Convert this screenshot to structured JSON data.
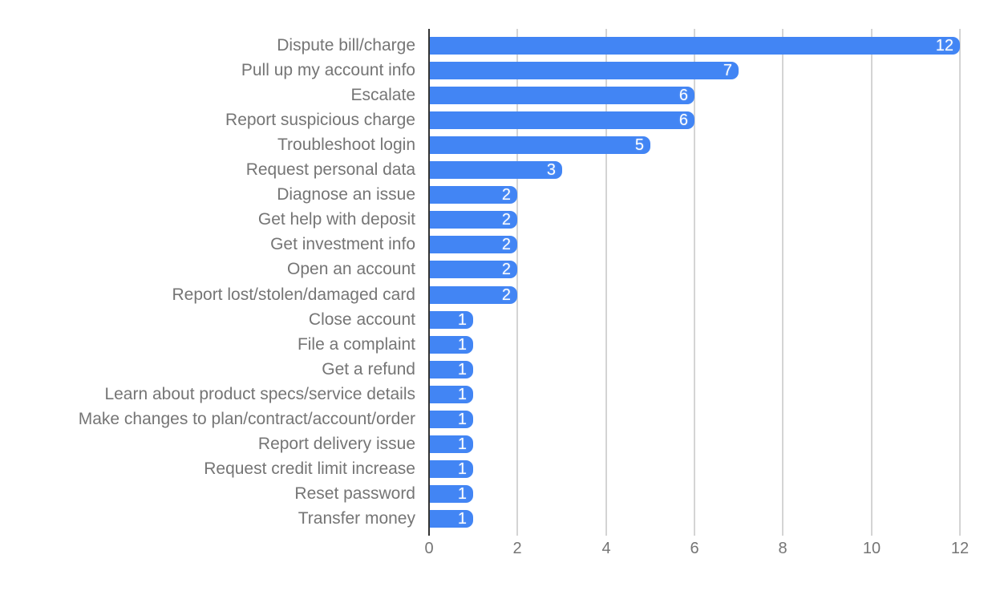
{
  "chart_data": {
    "type": "bar",
    "orientation": "horizontal",
    "title": "",
    "xlabel": "",
    "ylabel": "",
    "categories": [
      "Dispute bill/charge",
      "Pull up my account info",
      "Escalate",
      "Report suspicious charge",
      "Troubleshoot login",
      "Request personal data",
      "Diagnose an issue",
      "Get help with deposit",
      "Get investment info",
      "Open an account",
      "Report lost/stolen/damaged card",
      "Close account",
      "File a complaint",
      "Get a refund",
      "Learn about product specs/service details",
      "Make changes to plan/contract/account/order",
      "Report delivery issue",
      "Request credit limit increase",
      "Reset password",
      "Transfer money"
    ],
    "values": [
      12,
      7,
      6,
      6,
      5,
      3,
      2,
      2,
      2,
      2,
      2,
      1,
      1,
      1,
      1,
      1,
      1,
      1,
      1,
      1
    ],
    "value_labels": [
      "12",
      "7",
      "6",
      "6",
      "5",
      "3",
      "2",
      "2",
      "2",
      "2",
      "2",
      "1",
      "1",
      "1",
      "1",
      "1",
      "1",
      "1",
      "1",
      "1"
    ],
    "xlim": [
      0,
      12
    ],
    "x_ticks": [
      0,
      2,
      4,
      6,
      8,
      10,
      12
    ],
    "grid": true,
    "legend": "none",
    "colors": {
      "bar": "#4285f4",
      "bar_value_text": "#ffffff",
      "category_label": "#757575",
      "tick_label": "#757575",
      "gridline": "#d4d4d4",
      "axis_line": "#333333"
    }
  }
}
